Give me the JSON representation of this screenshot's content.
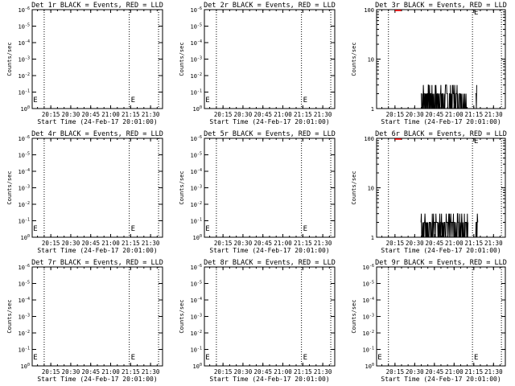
{
  "figure": {
    "colors": {
      "background": "#ffffff",
      "foreground": "#000000",
      "events": "#000000",
      "lld": "#ff0000"
    },
    "x_tick_labels": [
      "20:15",
      "20:30",
      "20:45",
      "21:00",
      "21:15",
      "21:30"
    ],
    "x_label": "Start Time (24-Feb-17 20:01:00)",
    "y_label": "Counts/sec"
  },
  "chart_data": [
    {
      "title": "Det 1r BLACK = Events, RED = LLD",
      "type": "line",
      "yscale": "log",
      "y_tick_labels": [
        "10^0",
        "10^-1",
        "10^-2",
        "10^-3",
        "10^-4",
        "10^-5",
        "10^-6"
      ],
      "ylim_exponents": [
        0,
        -6
      ],
      "series": []
    },
    {
      "title": "Det 2r BLACK = Events, RED = LLD",
      "type": "line",
      "yscale": "log",
      "y_tick_labels": [
        "10^0",
        "10^-1",
        "10^-2",
        "10^-3",
        "10^-4",
        "10^-5",
        "10^-6"
      ],
      "ylim_exponents": [
        0,
        -6
      ],
      "series": []
    },
    {
      "title": "Det 3r BLACK = Events, RED = LLD",
      "type": "line",
      "yscale": "log",
      "y_tick_labels": [
        "100",
        "10",
        "1"
      ],
      "ylim": [
        1,
        100
      ],
      "series": [
        {
          "values_seed": 7,
          "segments": [
            [
              20.58,
              21.16
            ],
            [
              21.27,
              21.29
            ]
          ],
          "low": 1,
          "high": 3
        }
      ]
    },
    {
      "title": "Det 4r BLACK = Events, RED = LLD",
      "type": "line",
      "yscale": "log",
      "y_tick_labels": [
        "10^0",
        "10^-1",
        "10^-2",
        "10^-3",
        "10^-4",
        "10^-5",
        "10^-6"
      ],
      "ylim_exponents": [
        0,
        -6
      ],
      "series": []
    },
    {
      "title": "Det 5r BLACK = Events, RED = LLD",
      "type": "line",
      "yscale": "log",
      "y_tick_labels": [
        "10^0",
        "10^-1",
        "10^-2",
        "10^-3",
        "10^-4",
        "10^-5",
        "10^-6"
      ],
      "ylim_exponents": [
        0,
        -6
      ],
      "series": []
    },
    {
      "title": "Det 6r BLACK = Events, RED = LLD",
      "type": "line",
      "yscale": "log",
      "y_tick_labels": [
        "100",
        "10",
        "1"
      ],
      "ylim": [
        1,
        100
      ],
      "series": [
        {
          "values_seed": 11,
          "segments": [
            [
              20.58,
              21.18
            ],
            [
              21.27,
              21.3
            ]
          ],
          "low": 1,
          "high": 3
        }
      ]
    },
    {
      "title": "Det 7r BLACK = Events, RED = LLD",
      "type": "line",
      "yscale": "log",
      "y_tick_labels": [
        "10^0",
        "10^-1",
        "10^-2",
        "10^-3",
        "10^-4",
        "10^-5",
        "10^-6"
      ],
      "ylim_exponents": [
        0,
        -6
      ],
      "series": []
    },
    {
      "title": "Det 8r BLACK = Events, RED = LLD",
      "type": "line",
      "yscale": "log",
      "y_tick_labels": [
        "10^0",
        "10^-1",
        "10^-2",
        "10^-3",
        "10^-4",
        "10^-5",
        "10^-6"
      ],
      "ylim_exponents": [
        0,
        -6
      ],
      "series": []
    },
    {
      "title": "Det 9r BLACK = Events, RED = LLD",
      "type": "line",
      "yscale": "log",
      "y_tick_labels": [
        "10^0",
        "10^-1",
        "10^-2",
        "10^-3",
        "10^-4",
        "10^-5",
        "10^-6"
      ],
      "ylim_exponents": [
        0,
        -6
      ],
      "series": []
    }
  ]
}
